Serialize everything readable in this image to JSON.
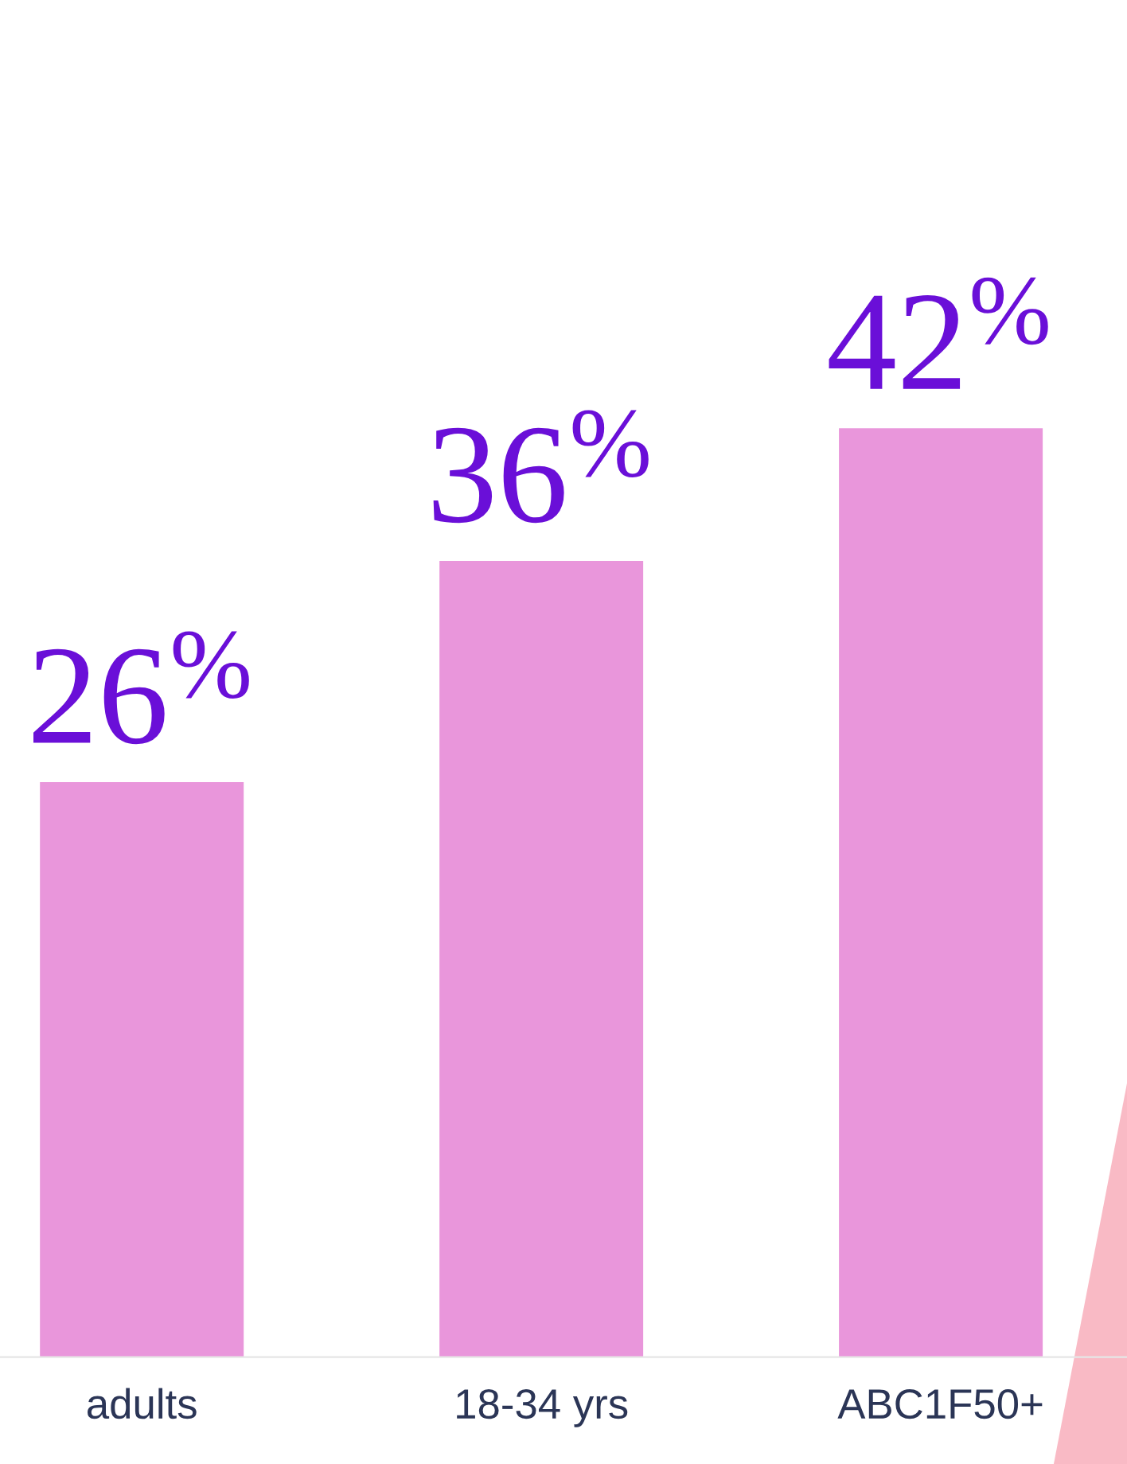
{
  "chart_data": {
    "type": "bar",
    "categories": [
      "adults",
      "18-34 yrs",
      "ABC1F50+"
    ],
    "values": [
      26,
      36,
      42
    ],
    "value_labels": [
      "26$^{%}$",
      "36$^{%}$",
      "42$^{%}$"
    ],
    "color": "#e996db",
    "grid": false,
    "legend": false
  }
}
